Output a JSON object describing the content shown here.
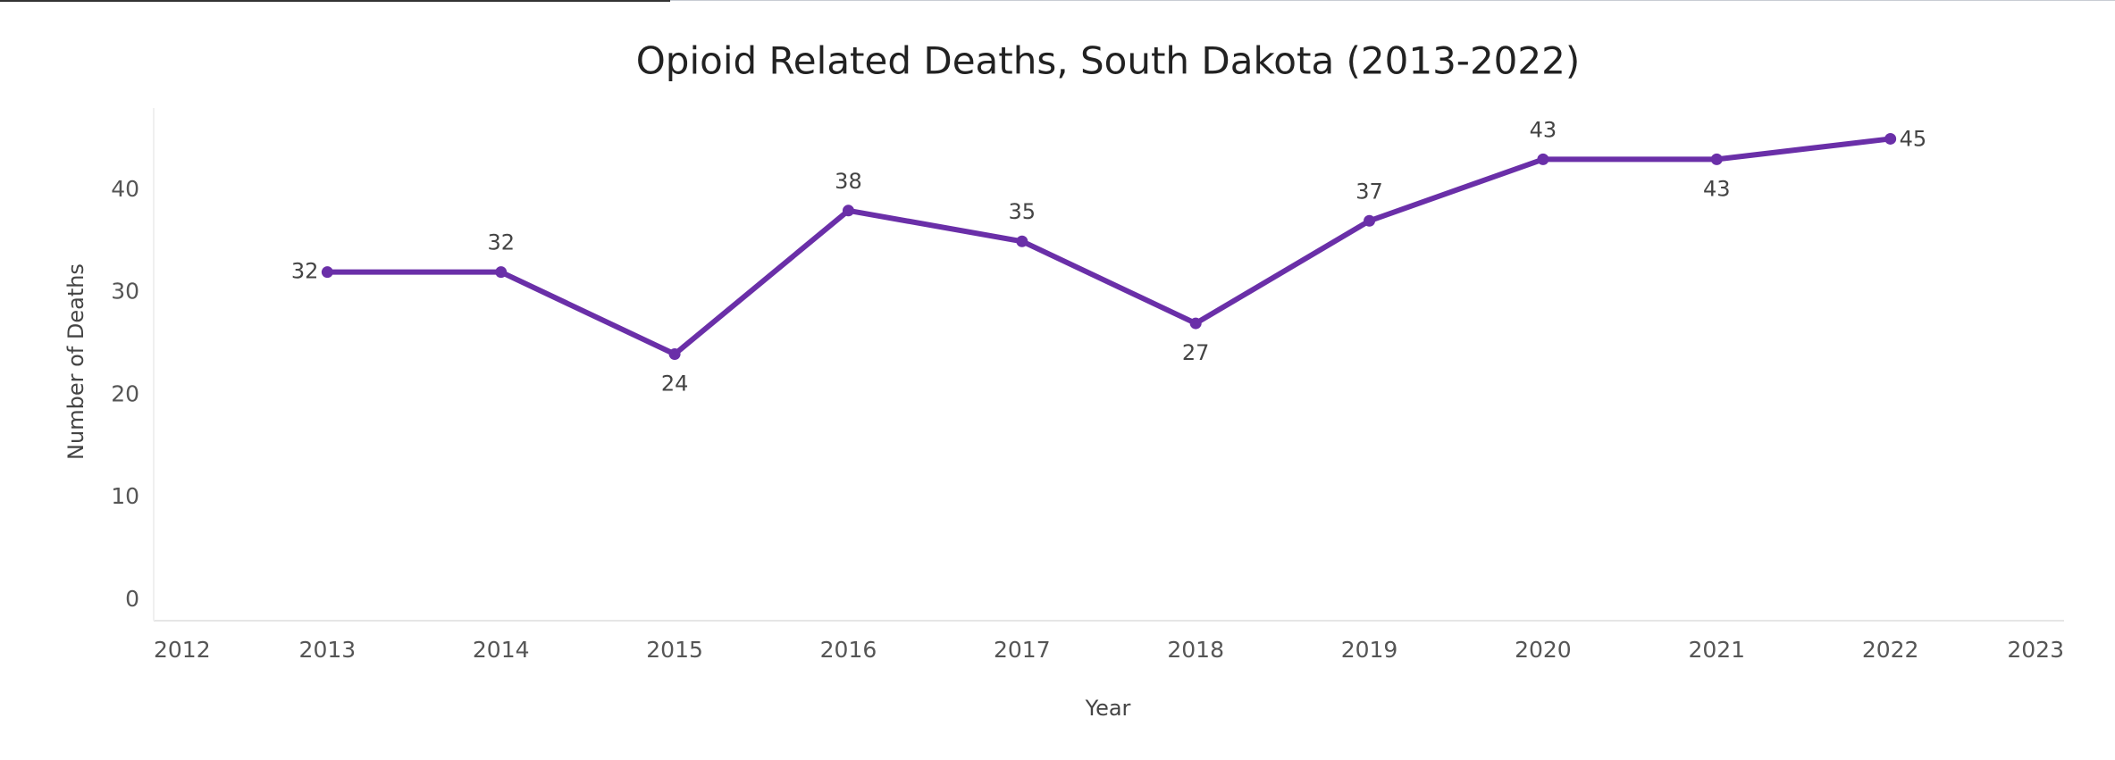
{
  "chart_data": {
    "type": "line",
    "title": "Opioid Related Deaths, South Dakota (2013-2022)",
    "x_label": "Year",
    "y_label": "Number of Deaths",
    "x": [
      2013,
      2014,
      2015,
      2016,
      2017,
      2018,
      2019,
      2020,
      2021,
      2022
    ],
    "series": [
      {
        "name": "Number of Deaths",
        "color": "#6a2fa8",
        "values": [
          32,
          32,
          24,
          38,
          35,
          27,
          37,
          43,
          43,
          45
        ]
      }
    ],
    "xlim": [
      2012,
      2023
    ],
    "xticks": [
      2012,
      2013,
      2014,
      2015,
      2016,
      2017,
      2018,
      2019,
      2020,
      2021,
      2022,
      2023
    ],
    "ylim": [
      -2,
      48
    ],
    "yticks": [
      0,
      10,
      20,
      30,
      40
    ],
    "grid": false
  }
}
